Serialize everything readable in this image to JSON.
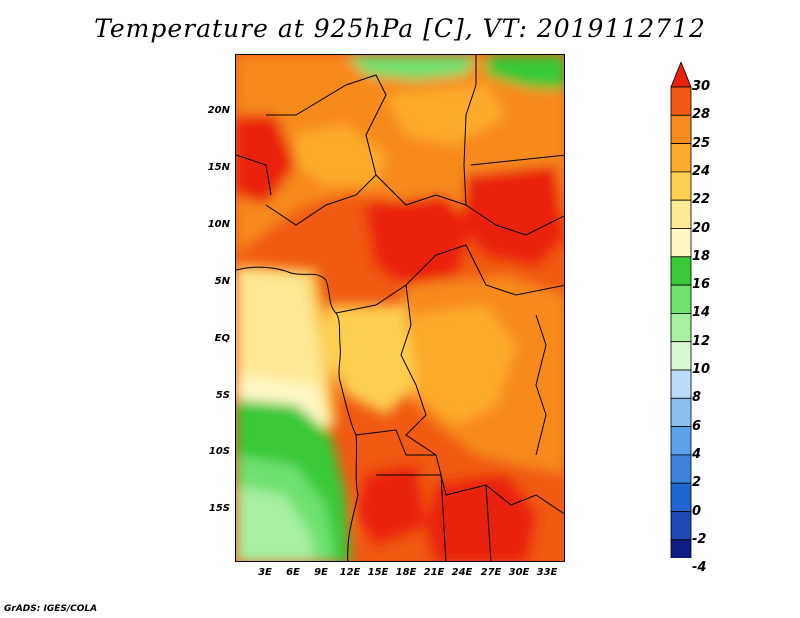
{
  "title": "Temperature at 925hPa [C], VT: 2019112712",
  "credit": "GrADS: IGES/COLA",
  "lat_labels": [
    "20N",
    "15N",
    "10N",
    "5N",
    "EQ",
    "5S",
    "10S",
    "15S"
  ],
  "lon_labels": [
    "3E",
    "6E",
    "9E",
    "12E",
    "15E",
    "18E",
    "21E",
    "24E",
    "27E",
    "30E",
    "33E"
  ],
  "colorbar": {
    "labels": [
      "30",
      "28",
      "25",
      "24",
      "22",
      "20",
      "18",
      "16",
      "14",
      "12",
      "10",
      "8",
      "6",
      "4",
      "2",
      "0",
      "-2",
      "-4"
    ],
    "colors": [
      "#e8200c",
      "#f05a12",
      "#f88a1e",
      "#fbac2c",
      "#fcce50",
      "#fde896",
      "#fff8c4",
      "#38c838",
      "#6ee06e",
      "#a6f0a0",
      "#d8f8d2",
      "#b8dcfa",
      "#8cc0f0",
      "#5ca2ea",
      "#3a84e0",
      "#1e66d4",
      "#1c48b8",
      "#0e1e86",
      "#101078",
      "#dcd8f0"
    ]
  }
}
